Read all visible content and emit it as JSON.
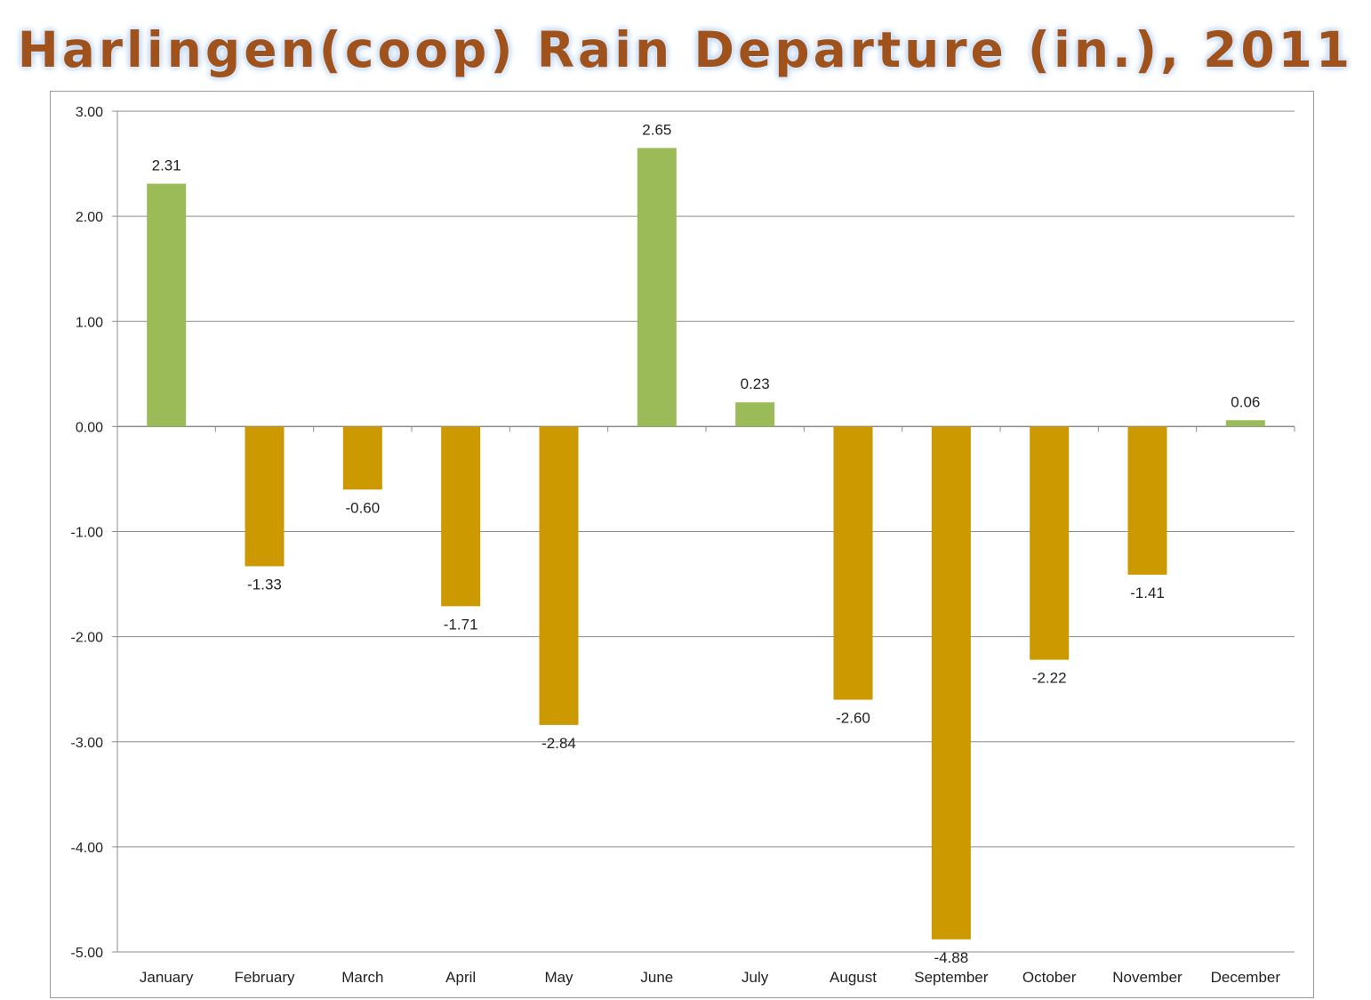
{
  "chart_data": {
    "type": "bar",
    "title": "Harlingen(coop) Rain Departure (in.), 2011",
    "xlabel": "",
    "ylabel": "",
    "categories": [
      "January",
      "February",
      "March",
      "April",
      "May",
      "June",
      "July",
      "August",
      "September",
      "October",
      "November",
      "December"
    ],
    "values": [
      2.31,
      -1.33,
      -0.6,
      -1.71,
      -2.84,
      2.65,
      0.23,
      -2.6,
      -4.88,
      -2.22,
      -1.41,
      0.06
    ],
    "data_labels": [
      "2.31",
      "-1.33",
      "-0.60",
      "-1.71",
      "-2.84",
      "2.65",
      "0.23",
      "-2.60",
      "-4.88",
      "-2.22",
      "-1.41",
      "0.06"
    ],
    "ylim": [
      -5,
      3
    ],
    "yticks": [
      3,
      2,
      1,
      0,
      -1,
      -2,
      -3,
      -4,
      -5
    ],
    "ytick_labels": [
      "3.00",
      "2.00",
      "1.00",
      "0.00",
      "-1.00",
      "-2.00",
      "-3.00",
      "-4.00",
      "-5.00"
    ],
    "grid": true,
    "legend": "none",
    "colors": {
      "positive": "#9bbb59",
      "negative": "#cc9900",
      "grid": "#8c8c8c",
      "title": "#a0521c"
    }
  }
}
